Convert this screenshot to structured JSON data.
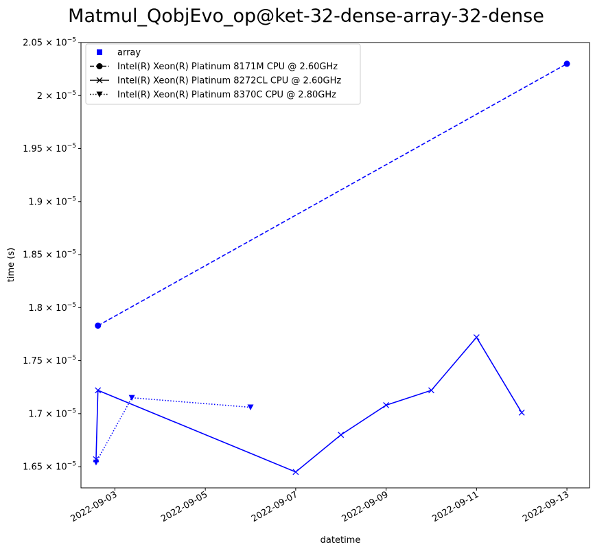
{
  "chart_data": {
    "type": "line",
    "title": "Matmul_QobjEvo_op@ket-32-dense-array-32-dense",
    "xlabel": "datetime",
    "ylabel": "time (s)",
    "xlim": [
      "2022-09-02T06:00",
      "2022-09-13T12:00"
    ],
    "ylim": [
      1.63e-05,
      2.05e-05
    ],
    "grid": false,
    "legend_position": "upper-left",
    "x_ticks": [
      {
        "value": "2022-09-03",
        "label": "2022-09-03"
      },
      {
        "value": "2022-09-05",
        "label": "2022-09-05"
      },
      {
        "value": "2022-09-07",
        "label": "2022-09-07"
      },
      {
        "value": "2022-09-09",
        "label": "2022-09-09"
      },
      {
        "value": "2022-09-11",
        "label": "2022-09-11"
      },
      {
        "value": "2022-09-13",
        "label": "2022-09-13"
      }
    ],
    "y_ticks": [
      {
        "value": 1.65e-05,
        "mantissa": "1.65",
        "exponent": "−5"
      },
      {
        "value": 1.7e-05,
        "mantissa": "1.7",
        "exponent": "−5"
      },
      {
        "value": 1.75e-05,
        "mantissa": "1.75",
        "exponent": "−5"
      },
      {
        "value": 1.8e-05,
        "mantissa": "1.8",
        "exponent": "−5"
      },
      {
        "value": 1.85e-05,
        "mantissa": "1.85",
        "exponent": "−5"
      },
      {
        "value": 1.9e-05,
        "mantissa": "1.9",
        "exponent": "−5"
      },
      {
        "value": 1.95e-05,
        "mantissa": "1.95",
        "exponent": "−5"
      },
      {
        "value": 2e-05,
        "mantissa": "2",
        "exponent": "−5"
      },
      {
        "value": 2.05e-05,
        "mantissa": "2.05",
        "exponent": "−5"
      }
    ],
    "legend": [
      {
        "label": "array",
        "marker": "square",
        "line": "none"
      },
      {
        "label": "Intel(R) Xeon(R) Platinum 8171M CPU @ 2.60GHz",
        "marker": "circle",
        "line": "dashed"
      },
      {
        "label": "Intel(R) Xeon(R) Platinum 8272CL CPU @ 2.60GHz",
        "marker": "x",
        "line": "solid"
      },
      {
        "label": "Intel(R) Xeon(R) Platinum 8370C CPU @ 2.80GHz",
        "marker": "triangle-down",
        "line": "dotted"
      }
    ],
    "series": [
      {
        "name": "Intel(R) Xeon(R) Platinum 8171M CPU @ 2.60GHz",
        "color": "#0000ff",
        "line": "dashed",
        "marker": "circle",
        "points": [
          {
            "x": "2022-09-02T15:00",
            "y": 1.783e-05
          },
          {
            "x": "2022-09-13T00:00",
            "y": 2.03e-05
          }
        ]
      },
      {
        "name": "Intel(R) Xeon(R) Platinum 8272CL CPU @ 2.60GHz",
        "color": "#0000ff",
        "line": "solid",
        "marker": "x",
        "points": [
          {
            "x": "2022-09-02T14:00",
            "y": 1.657e-05
          },
          {
            "x": "2022-09-02T15:00",
            "y": 1.722e-05
          },
          {
            "x": "2022-09-07T00:00",
            "y": 1.645e-05
          },
          {
            "x": "2022-09-08T00:00",
            "y": 1.68e-05
          },
          {
            "x": "2022-09-09T00:00",
            "y": 1.708e-05
          },
          {
            "x": "2022-09-10T00:00",
            "y": 1.722e-05
          },
          {
            "x": "2022-09-11T00:00",
            "y": 1.772e-05
          },
          {
            "x": "2022-09-12T00:00",
            "y": 1.701e-05
          }
        ]
      },
      {
        "name": "Intel(R) Xeon(R) Platinum 8370C CPU @ 2.80GHz",
        "color": "#0000ff",
        "line": "dotted",
        "marker": "triangle-down",
        "points": [
          {
            "x": "2022-09-02T14:00",
            "y": 1.654e-05
          },
          {
            "x": "2022-09-03T09:00",
            "y": 1.715e-05
          },
          {
            "x": "2022-09-06T00:00",
            "y": 1.706e-05
          }
        ]
      }
    ]
  }
}
